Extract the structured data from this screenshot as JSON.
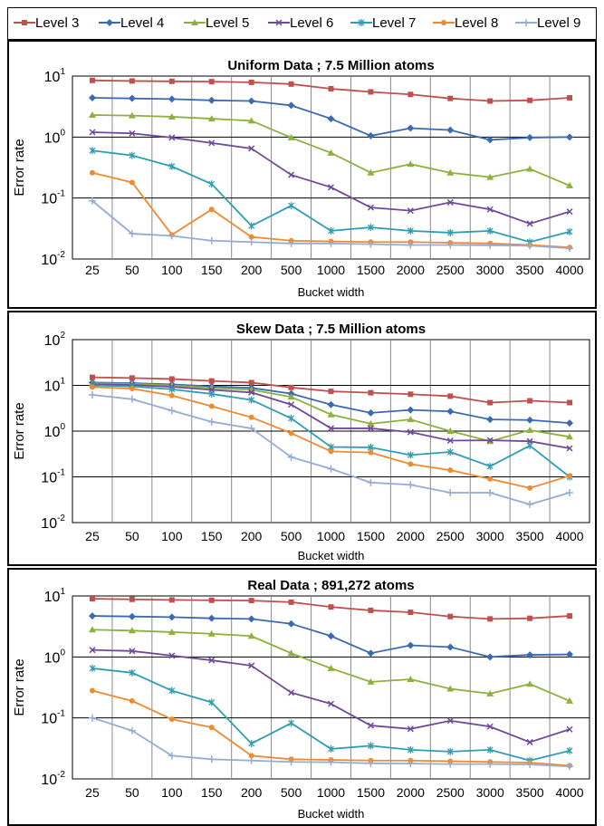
{
  "chart_data": [
    {
      "type": "line",
      "title": "Uniform Data  ;  7.5  Million atoms",
      "xlabel": "Bucket width",
      "ylabel": "Error  rate",
      "yscale": "log",
      "ylim": [
        0.01,
        10
      ],
      "y_ticks": [
        {
          "base": "10",
          "exp": "1"
        },
        {
          "base": "10",
          "exp": "0"
        },
        {
          "base": "10",
          "exp": "-1"
        },
        {
          "base": "10",
          "exp": "-2"
        }
      ],
      "categories": [
        "25",
        "50",
        "100",
        "150",
        "200",
        "500",
        "1000",
        "1500",
        "2000",
        "2500",
        "3000",
        "3500",
        "4000"
      ],
      "grid": true,
      "series": [
        {
          "name": "Level 3",
          "values": [
            8.5,
            8.3,
            8.2,
            8.1,
            7.9,
            7.4,
            6.2,
            5.5,
            5.0,
            4.3,
            3.9,
            4.0,
            4.4
          ]
        },
        {
          "name": "Level 4",
          "values": [
            4.4,
            4.3,
            4.2,
            4.0,
            3.9,
            3.3,
            2.0,
            1.05,
            1.4,
            1.3,
            0.9,
            0.98,
            1.0
          ]
        },
        {
          "name": "Level 5",
          "values": [
            2.3,
            2.25,
            2.15,
            2.0,
            1.85,
            0.98,
            0.55,
            0.26,
            0.36,
            0.26,
            0.22,
            0.3,
            0.16
          ]
        },
        {
          "name": "Level 6",
          "values": [
            1.2,
            1.15,
            0.98,
            0.8,
            0.65,
            0.24,
            0.15,
            0.07,
            0.062,
            0.085,
            0.065,
            0.038,
            0.06
          ]
        },
        {
          "name": "Level 7",
          "values": [
            0.6,
            0.5,
            0.33,
            0.17,
            0.035,
            0.075,
            0.029,
            0.033,
            0.029,
            0.027,
            0.029,
            0.019,
            0.028
          ]
        },
        {
          "name": "Level 8",
          "values": [
            0.26,
            0.18,
            0.025,
            0.065,
            0.023,
            0.02,
            0.0195,
            0.019,
            0.019,
            0.0185,
            0.018,
            0.017,
            0.0155
          ]
        },
        {
          "name": "Level 9",
          "values": [
            0.09,
            0.026,
            0.024,
            0.02,
            0.019,
            0.018,
            0.018,
            0.0175,
            0.017,
            0.017,
            0.0168,
            0.0165,
            0.015
          ]
        }
      ]
    },
    {
      "type": "line",
      "title": "Skew Data  ;  7.5  Million atoms",
      "xlabel": "Bucket width",
      "ylabel": "Error  rate",
      "yscale": "log",
      "ylim": [
        0.01,
        100
      ],
      "y_ticks": [
        {
          "base": "10",
          "exp": "2"
        },
        {
          "base": "10",
          "exp": "1"
        },
        {
          "base": "10",
          "exp": "0"
        },
        {
          "base": "10",
          "exp": "-1"
        },
        {
          "base": "10",
          "exp": "-2"
        }
      ],
      "categories": [
        "25",
        "50",
        "100",
        "150",
        "200",
        "500",
        "1000",
        "1500",
        "2000",
        "2500",
        "3000",
        "3500",
        "4000"
      ],
      "grid": true,
      "series": [
        {
          "name": "Level 3",
          "values": [
            15,
            14.5,
            13.8,
            12.5,
            11.5,
            9.0,
            7.4,
            6.9,
            6.4,
            5.8,
            4.2,
            4.6,
            4.2
          ]
        },
        {
          "name": "Level 4",
          "values": [
            11.5,
            11.2,
            10.5,
            9.5,
            8.8,
            6.6,
            3.8,
            2.5,
            2.9,
            2.7,
            1.8,
            1.75,
            1.5
          ]
        },
        {
          "name": "Level 5",
          "values": [
            11,
            10.8,
            10,
            8.8,
            8.0,
            5.6,
            2.3,
            1.45,
            1.8,
            1.0,
            0.6,
            1.05,
            0.75
          ]
        },
        {
          "name": "Level 6",
          "values": [
            10.5,
            10.2,
            9.3,
            8.0,
            7.0,
            3.8,
            1.15,
            1.15,
            0.95,
            0.62,
            0.63,
            0.6,
            0.42
          ]
        },
        {
          "name": "Level 7",
          "values": [
            10,
            9.5,
            8.2,
            6.5,
            4.8,
            1.9,
            0.45,
            0.44,
            0.3,
            0.35,
            0.17,
            0.48,
            0.1
          ]
        },
        {
          "name": "Level 8",
          "values": [
            9.2,
            8.5,
            6.0,
            3.5,
            2.0,
            0.9,
            0.36,
            0.34,
            0.19,
            0.14,
            0.09,
            0.057,
            0.105
          ]
        },
        {
          "name": "Level 9",
          "values": [
            6.2,
            5.0,
            2.8,
            1.6,
            1.15,
            0.27,
            0.15,
            0.075,
            0.067,
            0.045,
            0.045,
            0.025,
            0.045
          ]
        }
      ]
    },
    {
      "type": "line",
      "title": "Real Data  ;  891,272  atoms",
      "xlabel": "Bucket width",
      "ylabel": "Error  rate",
      "yscale": "log",
      "ylim": [
        0.01,
        10
      ],
      "y_ticks": [
        {
          "base": "10",
          "exp": "1"
        },
        {
          "base": "10",
          "exp": "0"
        },
        {
          "base": "10",
          "exp": "-1"
        },
        {
          "base": "10",
          "exp": "-2"
        }
      ],
      "categories": [
        "25",
        "50",
        "100",
        "150",
        "200",
        "500",
        "1000",
        "1500",
        "2000",
        "2500",
        "3000",
        "3500",
        "4000"
      ],
      "grid": true,
      "series": [
        {
          "name": "Level 3",
          "values": [
            9.0,
            8.8,
            8.6,
            8.5,
            8.4,
            7.9,
            6.6,
            5.8,
            5.4,
            4.6,
            4.2,
            4.3,
            4.7
          ]
        },
        {
          "name": "Level 4",
          "values": [
            4.7,
            4.6,
            4.5,
            4.3,
            4.2,
            3.5,
            2.2,
            1.15,
            1.55,
            1.45,
            1.0,
            1.08,
            1.1
          ]
        },
        {
          "name": "Level 5",
          "values": [
            2.8,
            2.7,
            2.55,
            2.4,
            2.2,
            1.15,
            0.65,
            0.39,
            0.43,
            0.3,
            0.25,
            0.36,
            0.19
          ]
        },
        {
          "name": "Level 6",
          "values": [
            1.3,
            1.25,
            1.05,
            0.88,
            0.72,
            0.26,
            0.17,
            0.075,
            0.066,
            0.09,
            0.072,
            0.04,
            0.065
          ]
        },
        {
          "name": "Level 7",
          "values": [
            0.65,
            0.55,
            0.28,
            0.18,
            0.038,
            0.082,
            0.031,
            0.035,
            0.03,
            0.028,
            0.03,
            0.02,
            0.029
          ]
        },
        {
          "name": "Level 8",
          "values": [
            0.28,
            0.19,
            0.095,
            0.07,
            0.024,
            0.021,
            0.0205,
            0.02,
            0.02,
            0.0195,
            0.019,
            0.0185,
            0.0165
          ]
        },
        {
          "name": "Level 9",
          "values": [
            0.1,
            0.062,
            0.024,
            0.021,
            0.02,
            0.019,
            0.0188,
            0.018,
            0.0178,
            0.0175,
            0.0175,
            0.0172,
            0.016
          ]
        }
      ]
    }
  ],
  "legend": {
    "placement": "top",
    "items": [
      {
        "label": "Level 3",
        "color": "#c0504d",
        "marker": "square"
      },
      {
        "label": "Level 4",
        "color": "#3a6ab0",
        "marker": "diamond"
      },
      {
        "label": "Level 5",
        "color": "#8db13c",
        "marker": "triangle"
      },
      {
        "label": "Level 6",
        "color": "#6f4a9a",
        "marker": "x"
      },
      {
        "label": "Level 7",
        "color": "#2f9eb4",
        "marker": "star"
      },
      {
        "label": "Level 8",
        "color": "#f08a2e",
        "marker": "circle"
      },
      {
        "label": "Level 9",
        "color": "#94acd6",
        "marker": "plus"
      }
    ]
  }
}
